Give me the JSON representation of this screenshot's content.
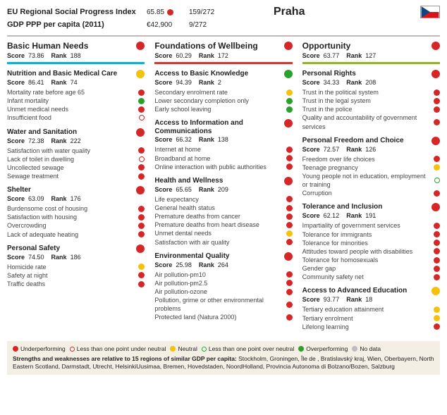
{
  "colors": {
    "red": "#d62728",
    "yellow": "#f4c20d",
    "green": "#2ca02c",
    "grey": "#bdbdbd",
    "bar1": "#1fa9c9",
    "bar2": "#c43c3c",
    "bar3": "#8fb135"
  },
  "header": {
    "line1_label": "EU Regional Social Progress Index",
    "line1_val": "65.85",
    "line1_rank": "159/272",
    "line2_label": "GDP PPP per capita (2011)",
    "line2_val": "€42,900",
    "line2_rank": "9/272",
    "region": "Praha",
    "flag": {
      "top": "#ffffff",
      "mid_bottom": "#d7141a",
      "triangle": "#11457e"
    }
  },
  "categories": [
    {
      "title": "Basic Human Needs",
      "score": "73.86",
      "rank": "188",
      "dot": "red",
      "bar": "bar1",
      "sections": [
        {
          "title": "Nutrition and Basic Medical Care",
          "score": "86.41",
          "rank": "74",
          "dot": "yellow",
          "indicators": [
            {
              "label": "Mortality rate before age 65",
              "sym": "red"
            },
            {
              "label": "Infant mortality",
              "sym": "green"
            },
            {
              "label": "Unmet medical needs",
              "sym": "red"
            },
            {
              "label": "Insufficient food",
              "sym": "ring-red"
            }
          ]
        },
        {
          "title": "Water and Sanitation",
          "score": "72.38",
          "rank": "222",
          "dot": "red",
          "indicators": [
            {
              "label": "Satisfaction with water quality",
              "sym": "red"
            },
            {
              "label": "Lack of toilet in dwelling",
              "sym": "ring-red"
            },
            {
              "label": "Uncollected sewage",
              "sym": "red"
            },
            {
              "label": "Sewage treatment",
              "sym": "red"
            }
          ]
        },
        {
          "title": "Shelter",
          "score": "63.09",
          "rank": "176",
          "dot": "red",
          "indicators": [
            {
              "label": "Burdensome cost of housing",
              "sym": "red"
            },
            {
              "label": "Satisfaction with housing",
              "sym": "red"
            },
            {
              "label": "Overcrowding",
              "sym": "red"
            },
            {
              "label": "Lack of adequate heating",
              "sym": "red"
            }
          ]
        },
        {
          "title": "Personal Safety",
          "score": "74.50",
          "rank": "186",
          "dot": "red",
          "indicators": [
            {
              "label": "Homicide rate",
              "sym": "yellow"
            },
            {
              "label": "Safety at night",
              "sym": "red"
            },
            {
              "label": "Traffic deaths",
              "sym": "red"
            }
          ]
        }
      ]
    },
    {
      "title": "Foundations of Wellbeing",
      "score": "60.29",
      "rank": "172",
      "dot": "red",
      "bar": "bar2",
      "sections": [
        {
          "title": "Access to Basic Knowledge",
          "score": "94.39",
          "rank": "2",
          "dot": "green",
          "indicators": [
            {
              "label": "Secondary enrolment rate",
              "sym": "yellow"
            },
            {
              "label": "Lower secondary completion only",
              "sym": "green"
            },
            {
              "label": "Early school leaving",
              "sym": "green"
            }
          ]
        },
        {
          "title": "Access to Information and Communications",
          "score": "66.32",
          "rank": "138",
          "dot": "red",
          "indicators": [
            {
              "label": "Internet at home",
              "sym": "red"
            },
            {
              "label": "Broadband at home",
              "sym": "red"
            },
            {
              "label": "Online interaction with public authorities",
              "sym": "red"
            }
          ]
        },
        {
          "title": "Health and Wellness",
          "score": "65.65",
          "rank": "209",
          "dot": "red",
          "indicators": [
            {
              "label": "Life expectancy",
              "sym": "red"
            },
            {
              "label": "General health status",
              "sym": "red"
            },
            {
              "label": "Premature deaths from cancer",
              "sym": "red"
            },
            {
              "label": "Premature deaths from heart disease",
              "sym": "red"
            },
            {
              "label": "Unmet dental needs",
              "sym": "yellow"
            },
            {
              "label": "Satisfaction with air quality",
              "sym": "red"
            }
          ]
        },
        {
          "title": "Environmental Quality",
          "score": "25.98",
          "rank": "264",
          "dot": "red",
          "indicators": [
            {
              "label": "Air pollution-pm10",
              "sym": "red"
            },
            {
              "label": "Air pollution-pm2.5",
              "sym": "red"
            },
            {
              "label": "Air pollution-ozone",
              "sym": "red"
            },
            {
              "label": "Pollution, grime or other environmental problems",
              "sym": "red"
            },
            {
              "label": "Protected land (Natura 2000)",
              "sym": "red"
            }
          ]
        }
      ]
    },
    {
      "title": "Opportunity",
      "score": "63.77",
      "rank": "127",
      "dot": "red",
      "bar": "bar3",
      "sections": [
        {
          "title": "Personal Rights",
          "score": "34.33",
          "rank": "208",
          "dot": "red",
          "indicators": [
            {
              "label": "Trust in the political system",
              "sym": "red"
            },
            {
              "label": "Trust in the legal system",
              "sym": "red"
            },
            {
              "label": "Trust in the police",
              "sym": "red"
            },
            {
              "label": "Quality and accountability of government services",
              "sym": "red"
            }
          ]
        },
        {
          "title": "Personal Freedom and Choice",
          "score": "72.57",
          "rank": "126",
          "dot": "red",
          "indicators": [
            {
              "label": "Freedom over life choices",
              "sym": "red"
            },
            {
              "label": "Teenage pregnancy",
              "sym": "yellow"
            },
            {
              "label": "Young people not in education, employment or training",
              "sym": "ring-green"
            },
            {
              "label": "Corruption",
              "sym": "red"
            }
          ]
        },
        {
          "title": "Tolerance and Inclusion",
          "score": "62.12",
          "rank": "191",
          "dot": "red",
          "indicators": [
            {
              "label": "Impartiality of government services",
              "sym": "red"
            },
            {
              "label": "Tolerance for immigrants",
              "sym": "red"
            },
            {
              "label": "Tolerance for minorities",
              "sym": "red"
            },
            {
              "label": "Attitudes toward people with disabilities",
              "sym": "red"
            },
            {
              "label": "Tolerance for homosexuals",
              "sym": "red"
            },
            {
              "label": "Gender gap",
              "sym": "red"
            },
            {
              "label": "Community safety net",
              "sym": "red"
            }
          ]
        },
        {
          "title": "Access to Advanced Education",
          "score": "93.77",
          "rank": "18",
          "dot": "yellow",
          "indicators": [
            {
              "label": "Tertiary education attainment",
              "sym": "yellow"
            },
            {
              "label": "Tertiary enrolment",
              "sym": "yellow"
            },
            {
              "label": "Lifelong learning",
              "sym": "red"
            }
          ]
        }
      ]
    }
  ],
  "legend": {
    "items": [
      {
        "sym": "red",
        "label": "Underperforming"
      },
      {
        "sym": "ring-red",
        "label": "Less than one point under neutral"
      },
      {
        "sym": "yellow",
        "label": "Neutral"
      },
      {
        "sym": "ring-green",
        "label": "Less than one point over neutral"
      },
      {
        "sym": "green",
        "label": "Overperforming"
      },
      {
        "sym": "grey",
        "label": "No data"
      }
    ],
    "footnote_bold": "Strengths and weaknesses are relative to 15 regions of similar GDP per capita:",
    "footnote_rest": " Stockholm, Groningen, Île de , Bratislavský kraj, Wien, Oberbayern, North Eastern Scotland, Darmstadt, Utrecht, HelsinkiUusimaa, Bremen, Hovedstaden, NoordHolland, Provincia Autonoma di Bolzano/Bozen, Salzburg"
  },
  "labels": {
    "score": "Score",
    "rank": "Rank"
  }
}
